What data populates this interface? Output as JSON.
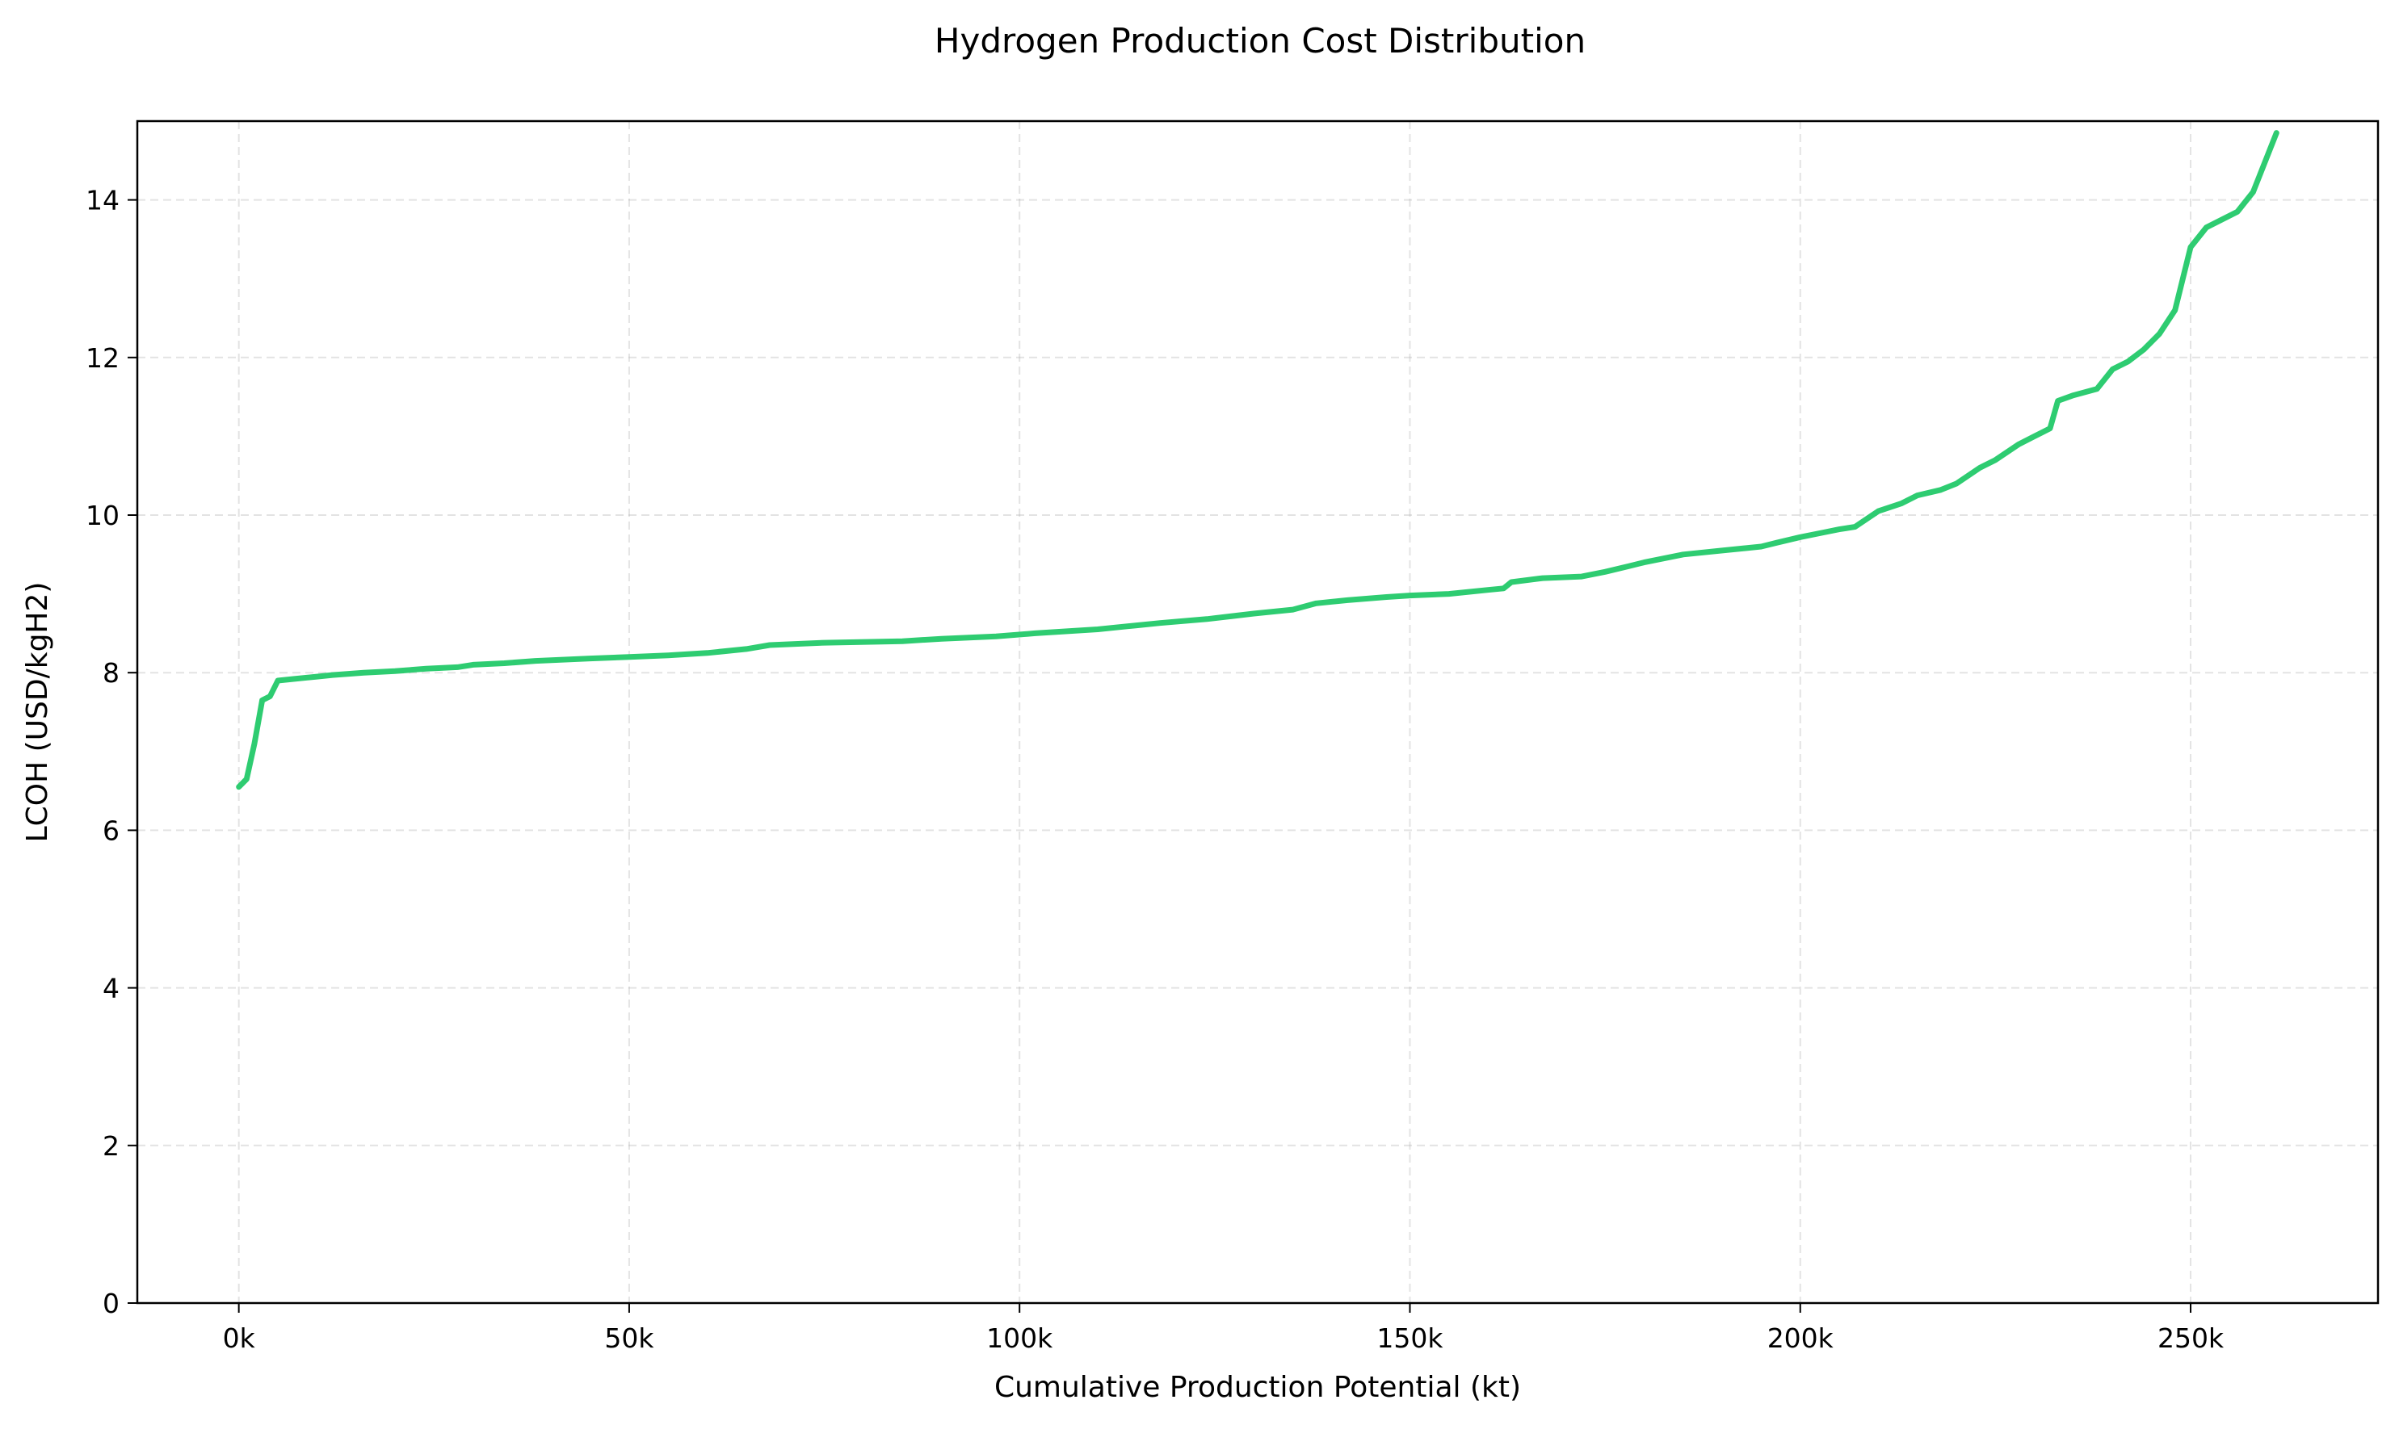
{
  "chart_data": {
    "type": "line",
    "title": "Hydrogen Production Cost Distribution",
    "xlabel": "Cumulative Production Potential (kt)",
    "ylabel": "LCOH (USD/kgH2)",
    "xlim": [
      -13000,
      274000
    ],
    "ylim": [
      0,
      15
    ],
    "x_ticks": [
      0,
      50000,
      100000,
      150000,
      200000,
      250000
    ],
    "x_tick_labels": [
      "0k",
      "50k",
      "100k",
      "150k",
      "200k",
      "250k"
    ],
    "y_ticks": [
      0,
      2,
      4,
      6,
      8,
      10,
      12,
      14
    ],
    "y_tick_labels": [
      "0",
      "2",
      "4",
      "6",
      "8",
      "10",
      "12",
      "14"
    ],
    "grid": true,
    "line_color": "#2ecc71",
    "series": [
      {
        "x": [
          0,
          1000,
          2000,
          3000,
          4000,
          5000,
          7000,
          10000,
          12000,
          16000,
          20000,
          24000,
          28000,
          30000,
          34000,
          38000,
          45000,
          50000,
          55000,
          60000,
          65000,
          68000,
          75000,
          85000,
          90000,
          97000,
          102000,
          110000,
          115000,
          118000,
          124000,
          130000,
          135000,
          138000,
          142000,
          147000,
          150000,
          155000,
          160000,
          162000,
          163000,
          167000,
          172000,
          175000,
          178000,
          180000,
          185000,
          190000,
          195000,
          197000,
          200000,
          203000,
          205000,
          207000,
          210000,
          213000,
          215000,
          218000,
          220000,
          223000,
          225000,
          228000,
          230000,
          231000,
          232000,
          233000,
          235000,
          238000,
          240000,
          242000,
          244000,
          246000,
          248000,
          250000,
          252000,
          254000,
          256000,
          258000,
          261000
        ],
        "y": [
          6.55,
          6.65,
          7.1,
          7.65,
          7.7,
          7.9,
          7.92,
          7.95,
          7.97,
          8.0,
          8.02,
          8.05,
          8.07,
          8.1,
          8.12,
          8.15,
          8.18,
          8.2,
          8.22,
          8.25,
          8.3,
          8.35,
          8.38,
          8.4,
          8.43,
          8.46,
          8.5,
          8.55,
          8.6,
          8.63,
          8.68,
          8.75,
          8.8,
          8.88,
          8.92,
          8.96,
          8.98,
          9.0,
          9.05,
          9.07,
          9.15,
          9.2,
          9.22,
          9.28,
          9.35,
          9.4,
          9.5,
          9.55,
          9.6,
          9.65,
          9.72,
          9.78,
          9.82,
          9.85,
          10.05,
          10.15,
          10.25,
          10.32,
          10.4,
          10.6,
          10.7,
          10.9,
          11.0,
          11.05,
          11.1,
          11.45,
          11.52,
          11.6,
          11.85,
          11.95,
          12.1,
          12.3,
          12.6,
          13.4,
          13.65,
          13.75,
          13.85,
          14.1,
          14.85
        ]
      }
    ]
  }
}
